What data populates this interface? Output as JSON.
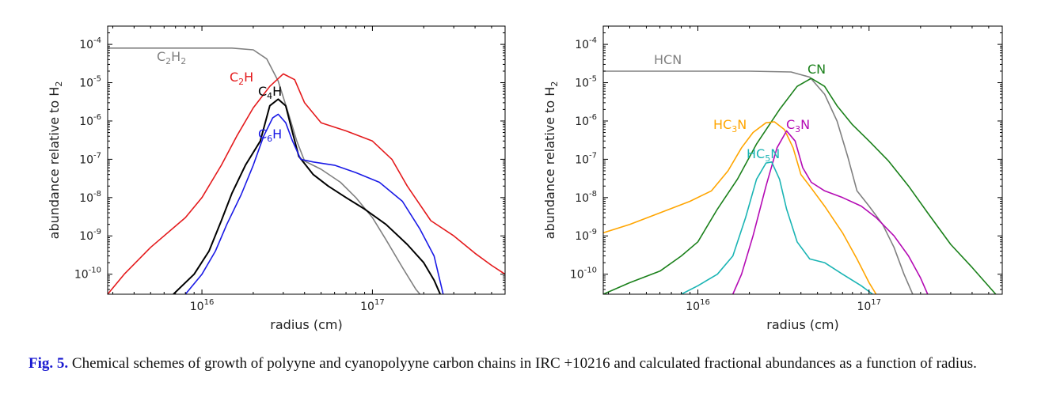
{
  "caption": {
    "figure_label": "Fig. 5.",
    "text": "Chemical schemes of growth of polyyne and cyanopolyyne carbon chains in IRC +10216 and calculated fractional abundances as a function of radius."
  },
  "chart_data": [
    {
      "type": "line",
      "xlabel": "radius (cm)",
      "ylabel": "abundance relative to H2",
      "xscale": "log",
      "yscale": "log",
      "xlim": [
        2800000000000000.0,
        6e+17
      ],
      "ylim": [
        3e-11,
        0.0003
      ],
      "x_ticks": [
        {
          "value": 1e+16,
          "label": "10^16"
        },
        {
          "value": 1e+17,
          "label": "10^17"
        }
      ],
      "y_ticks": [
        {
          "value": 0.0001,
          "label": "10^-4"
        },
        {
          "value": 1e-05,
          "label": "10^-5"
        },
        {
          "value": 1e-06,
          "label": "10^-6"
        },
        {
          "value": 1e-07,
          "label": "10^-7"
        },
        {
          "value": 1e-08,
          "label": "10^-8"
        },
        {
          "value": 1e-09,
          "label": "10^-9"
        },
        {
          "value": 1e-10,
          "label": "10^-10"
        }
      ],
      "series": [
        {
          "name": "C2H2",
          "label_parts": [
            [
              "C",
              "n"
            ],
            [
              "2",
              "sub"
            ],
            [
              "H",
              "n"
            ],
            [
              "2",
              "sub"
            ]
          ],
          "color": "#808080",
          "points": [
            [
              2800000000000000.0,
              8e-05
            ],
            [
              1.5e+16,
              8e-05
            ],
            [
              2e+16,
              7.2e-05
            ],
            [
              2.4e+16,
              4.2e-05
            ],
            [
              2.8e+16,
              1.1e-05
            ],
            [
              3.2e+16,
              1.7e-06
            ],
            [
              3.6e+16,
              3e-07
            ],
            [
              4e+16,
              9e-08
            ],
            [
              5e+16,
              5.5e-08
            ],
            [
              6.5e+16,
              2.5e-08
            ],
            [
              8e+16,
              1e-08
            ],
            [
              1e+17,
              3e-09
            ],
            [
              1.2e+17,
              8e-10
            ],
            [
              1.5e+17,
              1.5e-10
            ],
            [
              1.8e+17,
              4e-11
            ],
            [
              1.9e+17,
              3e-11
            ]
          ]
        },
        {
          "name": "C2H",
          "label_parts": [
            [
              "C",
              "n"
            ],
            [
              "2",
              "sub"
            ],
            [
              "H",
              "n"
            ]
          ],
          "color": "#e41a1c",
          "points": [
            [
              2800000000000000.0,
              3e-11
            ],
            [
              3500000000000000.0,
              1e-10
            ],
            [
              5000000000000000.0,
              5e-10
            ],
            [
              8000000000000000.0,
              3e-09
            ],
            [
              1e+16,
              1e-08
            ],
            [
              1.3e+16,
              7e-08
            ],
            [
              1.6e+16,
              4e-07
            ],
            [
              2e+16,
              2.2e-06
            ],
            [
              2.5e+16,
              8e-06
            ],
            [
              3e+16,
              1.7e-05
            ],
            [
              3.5e+16,
              1.2e-05
            ],
            [
              4e+16,
              3e-06
            ],
            [
              5e+16,
              9e-07
            ],
            [
              7e+16,
              5.5e-07
            ],
            [
              1e+17,
              3e-07
            ],
            [
              1.3e+17,
              1e-07
            ],
            [
              1.6e+17,
              2e-08
            ],
            [
              2.2e+17,
              2.5e-09
            ],
            [
              3e+17,
              1e-09
            ],
            [
              4e+17,
              3.5e-10
            ],
            [
              5e+17,
              1.7e-10
            ],
            [
              6e+17,
              1e-10
            ]
          ]
        },
        {
          "name": "C4H",
          "label_parts": [
            [
              "C",
              "n"
            ],
            [
              "4",
              "sub"
            ],
            [
              "H",
              "n"
            ]
          ],
          "color": "#000000",
          "points": [
            [
              6800000000000000.0,
              3e-11
            ],
            [
              9000000000000000.0,
              1e-10
            ],
            [
              1.1e+16,
              4e-10
            ],
            [
              1.3e+16,
              2.5e-09
            ],
            [
              1.5e+16,
              1.3e-08
            ],
            [
              1.8e+16,
              7e-08
            ],
            [
              2.2e+16,
              3e-07
            ],
            [
              2.5e+16,
              2.5e-06
            ],
            [
              2.8e+16,
              3.7e-06
            ],
            [
              3.1e+16,
              2.5e-06
            ],
            [
              3.4e+16,
              5e-07
            ],
            [
              3.7e+16,
              1.2e-07
            ],
            [
              4.5e+16,
              4e-08
            ],
            [
              5.5e+16,
              2e-08
            ],
            [
              7e+16,
              1e-08
            ],
            [
              9e+16,
              5e-09
            ],
            [
              1.2e+17,
              2e-09
            ],
            [
              1.6e+17,
              6e-10
            ],
            [
              2e+17,
              2e-10
            ],
            [
              2.3e+17,
              7e-11
            ],
            [
              2.5e+17,
              3e-11
            ]
          ]
        },
        {
          "name": "C6H",
          "label_parts": [
            [
              "C",
              "n"
            ],
            [
              "6",
              "sub"
            ],
            [
              "H",
              "n"
            ]
          ],
          "color": "#1a1ae6",
          "points": [
            [
              8000000000000000.0,
              3e-11
            ],
            [
              1e+16,
              1e-10
            ],
            [
              1.2e+16,
              4e-10
            ],
            [
              1.4e+16,
              2e-09
            ],
            [
              1.7e+16,
              1.2e-08
            ],
            [
              2e+16,
              7e-08
            ],
            [
              2.3e+16,
              4e-07
            ],
            [
              2.6e+16,
              1.2e-06
            ],
            [
              2.8e+16,
              1.5e-06
            ],
            [
              3.1e+16,
              9e-07
            ],
            [
              3.4e+16,
              3e-07
            ],
            [
              3.8e+16,
              1e-07
            ],
            [
              4.5e+16,
              8.5e-08
            ],
            [
              6e+16,
              7e-08
            ],
            [
              8e+16,
              4.5e-08
            ],
            [
              1.1e+17,
              2.5e-08
            ],
            [
              1.5e+17,
              8e-09
            ],
            [
              1.9e+17,
              1.5e-09
            ],
            [
              2.3e+17,
              3e-10
            ],
            [
              2.6e+17,
              3e-11
            ]
          ]
        }
      ]
    },
    {
      "type": "line",
      "xlabel": "radius (cm)",
      "ylabel": "abundance relative to H2",
      "xscale": "log",
      "yscale": "log",
      "xlim": [
        2800000000000000.0,
        6e+17
      ],
      "ylim": [
        3e-11,
        0.0003
      ],
      "x_ticks": [
        {
          "value": 1e+16,
          "label": "10^16"
        },
        {
          "value": 1e+17,
          "label": "10^17"
        }
      ],
      "y_ticks": [
        {
          "value": 0.0001,
          "label": "10^-4"
        },
        {
          "value": 1e-05,
          "label": "10^-5"
        },
        {
          "value": 1e-06,
          "label": "10^-6"
        },
        {
          "value": 1e-07,
          "label": "10^-7"
        },
        {
          "value": 1e-08,
          "label": "10^-8"
        },
        {
          "value": 1e-09,
          "label": "10^-9"
        },
        {
          "value": 1e-10,
          "label": "10^-10"
        }
      ],
      "series": [
        {
          "name": "HCN",
          "label_parts": [
            [
              "HCN",
              "n"
            ]
          ],
          "color": "#808080",
          "points": [
            [
              2800000000000000.0,
              2e-05
            ],
            [
              2e+16,
              2e-05
            ],
            [
              3.5e+16,
              1.9e-05
            ],
            [
              4.5e+16,
              1.4e-05
            ],
            [
              5.5e+16,
              5e-06
            ],
            [
              6.5e+16,
              1e-06
            ],
            [
              7.5e+16,
              1.2e-07
            ],
            [
              8.5e+16,
              1.5e-08
            ],
            [
              1e+17,
              6e-09
            ],
            [
              1.2e+17,
              2e-09
            ],
            [
              1.4e+17,
              5e-10
            ],
            [
              1.6e+17,
              1e-10
            ],
            [
              1.8e+17,
              3e-11
            ]
          ]
        },
        {
          "name": "CN",
          "label_parts": [
            [
              "CN",
              "n"
            ]
          ],
          "color": "#1a801a",
          "points": [
            [
              2800000000000000.0,
              3e-11
            ],
            [
              4000000000000000.0,
              6e-11
            ],
            [
              6000000000000000.0,
              1.2e-10
            ],
            [
              8000000000000000.0,
              3e-10
            ],
            [
              1e+16,
              7e-10
            ],
            [
              1.3e+16,
              5e-09
            ],
            [
              1.7e+16,
              3e-08
            ],
            [
              2.2e+16,
              2.5e-07
            ],
            [
              3e+16,
              2e-06
            ],
            [
              3.8e+16,
              8e-06
            ],
            [
              4.6e+16,
              1.3e-05
            ],
            [
              5.5e+16,
              8e-06
            ],
            [
              6.5e+16,
              2.5e-06
            ],
            [
              8e+16,
              8e-07
            ],
            [
              1e+17,
              3e-07
            ],
            [
              1.3e+17,
              9e-08
            ],
            [
              1.7e+17,
              2e-08
            ],
            [
              2.2e+17,
              4e-09
            ],
            [
              3e+17,
              6e-10
            ],
            [
              4e+17,
              1.5e-10
            ],
            [
              5.5e+17,
              3e-11
            ]
          ]
        },
        {
          "name": "HC3N",
          "label_parts": [
            [
              "HC",
              "n"
            ],
            [
              "3",
              "sub"
            ],
            [
              "N",
              "n"
            ]
          ],
          "color": "#ffa500",
          "points": [
            [
              2800000000000000.0,
              1.2e-09
            ],
            [
              4000000000000000.0,
              2e-09
            ],
            [
              6000000000000000.0,
              4e-09
            ],
            [
              9000000000000000.0,
              8e-09
            ],
            [
              1.2e+16,
              1.5e-08
            ],
            [
              1.5e+16,
              5e-08
            ],
            [
              1.8e+16,
              2e-07
            ],
            [
              2.1e+16,
              5e-07
            ],
            [
              2.5e+16,
              9e-07
            ],
            [
              2.8e+16,
              9.5e-07
            ],
            [
              3.2e+16,
              6e-07
            ],
            [
              3.6e+16,
              2e-07
            ],
            [
              4e+16,
              4e-08
            ],
            [
              4.5e+16,
              2e-08
            ],
            [
              5.5e+16,
              6e-09
            ],
            [
              7e+16,
              1.2e-09
            ],
            [
              8.5e+16,
              2.5e-10
            ],
            [
              1e+17,
              6e-11
            ],
            [
              1.1e+17,
              3e-11
            ]
          ]
        },
        {
          "name": "C3N",
          "label_parts": [
            [
              "C",
              "n"
            ],
            [
              "3",
              "sub"
            ],
            [
              "N",
              "n"
            ]
          ],
          "color": "#b40ab4",
          "points": [
            [
              1.6e+16,
              3e-11
            ],
            [
              1.8e+16,
              1e-10
            ],
            [
              2.1e+16,
              1e-09
            ],
            [
              2.5e+16,
              2e-08
            ],
            [
              2.9e+16,
              2e-07
            ],
            [
              3.3e+16,
              5.5e-07
            ],
            [
              3.7e+16,
              3e-07
            ],
            [
              4.1e+16,
              6e-08
            ],
            [
              4.6e+16,
              2.5e-08
            ],
            [
              5.5e+16,
              1.5e-08
            ],
            [
              7e+16,
              1e-08
            ],
            [
              9e+16,
              6e-09
            ],
            [
              1.1e+17,
              3e-09
            ],
            [
              1.4e+17,
              1e-09
            ],
            [
              1.7e+17,
              3e-10
            ],
            [
              2e+17,
              8e-11
            ],
            [
              2.2e+17,
              3e-11
            ]
          ]
        },
        {
          "name": "HC5N",
          "label_parts": [
            [
              "HC",
              "n"
            ],
            [
              "5",
              "sub"
            ],
            [
              "N",
              "n"
            ]
          ],
          "color": "#1ab4b4",
          "points": [
            [
              8000000000000000.0,
              3e-11
            ],
            [
              1e+16,
              5e-11
            ],
            [
              1.3e+16,
              1e-10
            ],
            [
              1.6e+16,
              3e-10
            ],
            [
              1.9e+16,
              3e-09
            ],
            [
              2.2e+16,
              3e-08
            ],
            [
              2.5e+16,
              8e-08
            ],
            [
              2.7e+16,
              8.5e-08
            ],
            [
              3e+16,
              3e-08
            ],
            [
              3.3e+16,
              5e-09
            ],
            [
              3.8e+16,
              7e-10
            ],
            [
              4.5e+16,
              2.5e-10
            ],
            [
              5.5e+16,
              2e-10
            ],
            [
              7e+16,
              1e-10
            ],
            [
              9e+16,
              5e-11
            ],
            [
              1.05e+17,
              3e-11
            ]
          ]
        }
      ]
    }
  ]
}
